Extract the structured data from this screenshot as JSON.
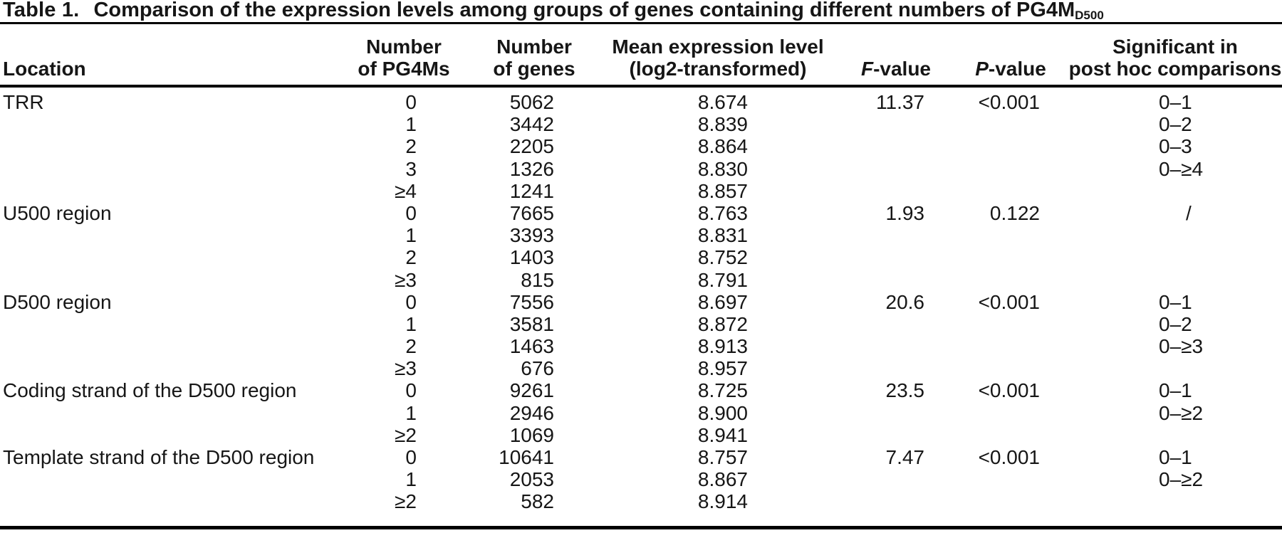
{
  "title": {
    "label": "Table 1.",
    "text": "Comparison of the expression levels among groups of genes containing different numbers of PG4M",
    "subscript": "D500"
  },
  "columns": {
    "location": {
      "lines": [
        "Location"
      ]
    },
    "pg4ms": {
      "lines": [
        "Number",
        "of PG4Ms"
      ]
    },
    "genes": {
      "lines": [
        "Number",
        "of genes"
      ]
    },
    "mean": {
      "lines": [
        "Mean expression level",
        "(log2-transformed)"
      ]
    },
    "f": {
      "lines": [
        "F-value"
      ]
    },
    "p": {
      "lines": [
        "P-value"
      ]
    },
    "posthoc": {
      "lines": [
        "Significant in",
        "post hoc comparisons"
      ]
    }
  },
  "rows": [
    {
      "location": "TRR",
      "pg4ms": "0",
      "genes": "5062",
      "mean": "8.674",
      "f": "11.37",
      "p": "<0.001",
      "posthoc": "0–1"
    },
    {
      "location": "",
      "pg4ms": "1",
      "genes": "3442",
      "mean": "8.839",
      "f": "",
      "p": "",
      "posthoc": "0–2"
    },
    {
      "location": "",
      "pg4ms": "2",
      "genes": "2205",
      "mean": "8.864",
      "f": "",
      "p": "",
      "posthoc": "0–3"
    },
    {
      "location": "",
      "pg4ms": "3",
      "genes": "1326",
      "mean": "8.830",
      "f": "",
      "p": "",
      "posthoc": "0–≥4"
    },
    {
      "location": "",
      "pg4ms": "≥4",
      "genes": "1241",
      "mean": "8.857",
      "f": "",
      "p": "",
      "posthoc": ""
    },
    {
      "location": "U500 region",
      "pg4ms": "0",
      "genes": "7665",
      "mean": "8.763",
      "f": "1.93",
      "p": "0.122",
      "posthoc": "/"
    },
    {
      "location": "",
      "pg4ms": "1",
      "genes": "3393",
      "mean": "8.831",
      "f": "",
      "p": "",
      "posthoc": ""
    },
    {
      "location": "",
      "pg4ms": "2",
      "genes": "1403",
      "mean": "8.752",
      "f": "",
      "p": "",
      "posthoc": ""
    },
    {
      "location": "",
      "pg4ms": "≥3",
      "genes": "815",
      "mean": "8.791",
      "f": "",
      "p": "",
      "posthoc": ""
    },
    {
      "location": "D500 region",
      "pg4ms": "0",
      "genes": "7556",
      "mean": "8.697",
      "f": "20.6",
      "p": "<0.001",
      "posthoc": "0–1"
    },
    {
      "location": "",
      "pg4ms": "1",
      "genes": "3581",
      "mean": "8.872",
      "f": "",
      "p": "",
      "posthoc": "0–2"
    },
    {
      "location": "",
      "pg4ms": "2",
      "genes": "1463",
      "mean": "8.913",
      "f": "",
      "p": "",
      "posthoc": "0–≥3"
    },
    {
      "location": "",
      "pg4ms": "≥3",
      "genes": "676",
      "mean": "8.957",
      "f": "",
      "p": "",
      "posthoc": ""
    },
    {
      "location": "Coding strand of the D500 region",
      "pg4ms": "0",
      "genes": "9261",
      "mean": "8.725",
      "f": "23.5",
      "p": "<0.001",
      "posthoc": "0–1"
    },
    {
      "location": "",
      "pg4ms": "1",
      "genes": "2946",
      "mean": "8.900",
      "f": "",
      "p": "",
      "posthoc": "0–≥2"
    },
    {
      "location": "",
      "pg4ms": "≥2",
      "genes": "1069",
      "mean": "8.941",
      "f": "",
      "p": "",
      "posthoc": ""
    },
    {
      "location": "Template strand of the D500 region",
      "pg4ms": "0",
      "genes": "10641",
      "mean": "8.757",
      "f": "7.47",
      "p": "<0.001",
      "posthoc": "0–1"
    },
    {
      "location": "",
      "pg4ms": "1",
      "genes": "2053",
      "mean": "8.867",
      "f": "",
      "p": "",
      "posthoc": "0–≥2"
    },
    {
      "location": "",
      "pg4ms": "≥2",
      "genes": "582",
      "mean": "8.914",
      "f": "",
      "p": "",
      "posthoc": ""
    }
  ],
  "text_color": "#161616"
}
